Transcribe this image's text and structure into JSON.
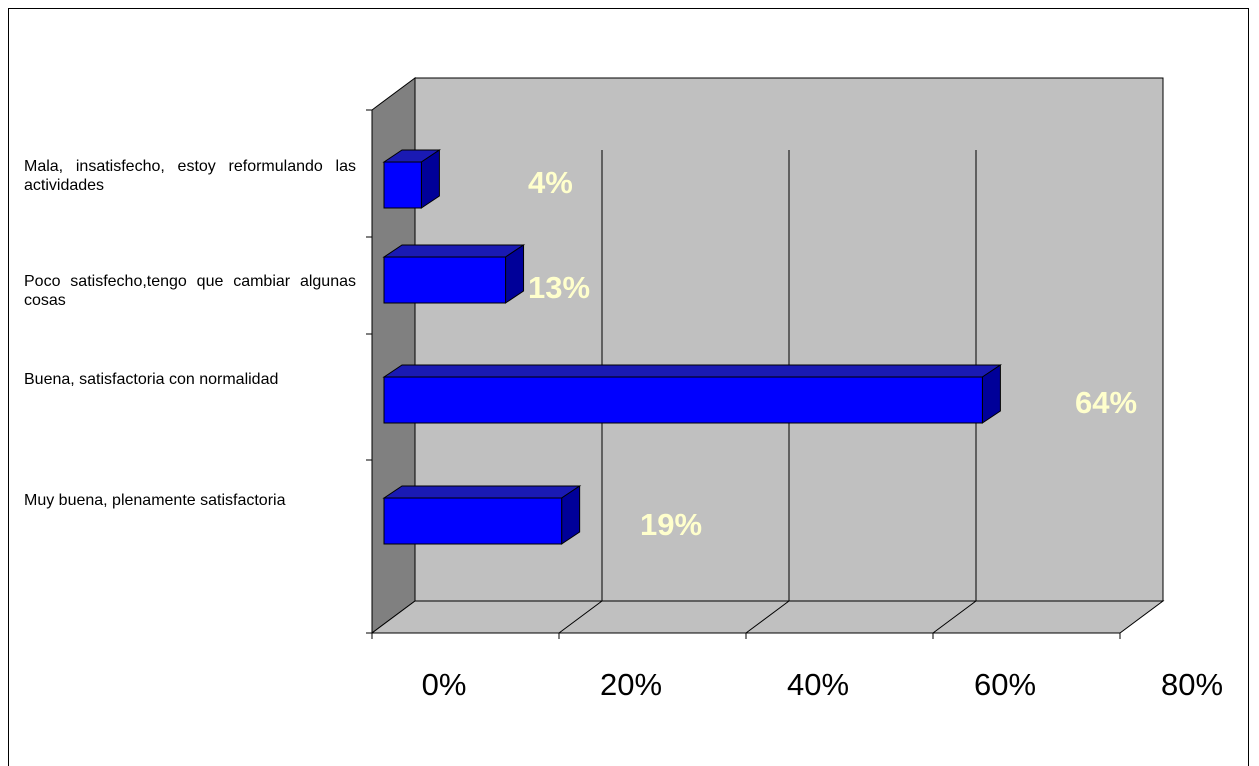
{
  "chart_data": {
    "type": "bar",
    "orientation": "horizontal",
    "style": "3d",
    "categories": [
      "Mala, insatisfecho, estoy reformulando las actividades",
      "Poco satisfecho,tengo que cambiar algunas cosas",
      "Buena, satisfactoria con normalidad",
      "Muy buena, plenamente satisfactoria"
    ],
    "values": [
      4,
      13,
      64,
      19
    ],
    "value_labels": [
      "4%",
      "13%",
      "64%",
      "19%"
    ],
    "x_ticks": [
      "0%",
      "20%",
      "40%",
      "60%",
      "80%"
    ],
    "xlim": [
      0,
      80
    ],
    "grid": true,
    "legend": false,
    "colors": {
      "bar": "#0000ff",
      "bar_side": "#000099",
      "bar_top": "#1a1ab3",
      "back_wall": "#c0c0c0",
      "side_wall": "#808080",
      "floor": "#c0c0c0",
      "data_label": "#ffffcc"
    }
  }
}
